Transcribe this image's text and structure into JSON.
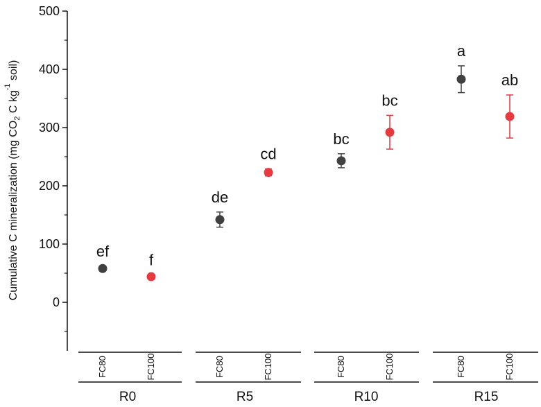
{
  "chart_data": {
    "type": "scatter",
    "ylabel": {
      "parts": [
        {
          "text": "Cumulative C mineralization (mg CO",
          "style": "normal"
        },
        {
          "text": "2",
          "style": "sub"
        },
        {
          "text": " C kg",
          "style": "normal"
        },
        {
          "text": "-1",
          "style": "sup"
        },
        {
          "text": " soil)",
          "style": "normal"
        }
      ]
    },
    "ylim": [
      -90,
      500
    ],
    "yticks": [
      0,
      100,
      200,
      300,
      400,
      500
    ],
    "grid": false,
    "groups": [
      "R0",
      "R5",
      "R10",
      "R15"
    ],
    "subgroups": [
      "FC80",
      "FC100"
    ],
    "series": [
      {
        "name": "FC80",
        "color": "#404040",
        "points": [
          {
            "group": "R0",
            "value": 58,
            "error": 4,
            "letter": "ef"
          },
          {
            "group": "R5",
            "value": 142,
            "error": 13,
            "letter": "de"
          },
          {
            "group": "R10",
            "value": 243,
            "error": 12,
            "letter": "bc"
          },
          {
            "group": "R15",
            "value": 383,
            "error": 23,
            "letter": "a"
          }
        ]
      },
      {
        "name": "FC100",
        "color": "#e8393f",
        "points": [
          {
            "group": "R0",
            "value": 44,
            "error": 3,
            "letter": "f"
          },
          {
            "group": "R5",
            "value": 223,
            "error": 6,
            "letter": "cd"
          },
          {
            "group": "R10",
            "value": 292,
            "error": 29,
            "letter": "bc"
          },
          {
            "group": "R15",
            "value": 319,
            "error": 37,
            "letter": "ab"
          }
        ]
      }
    ]
  }
}
